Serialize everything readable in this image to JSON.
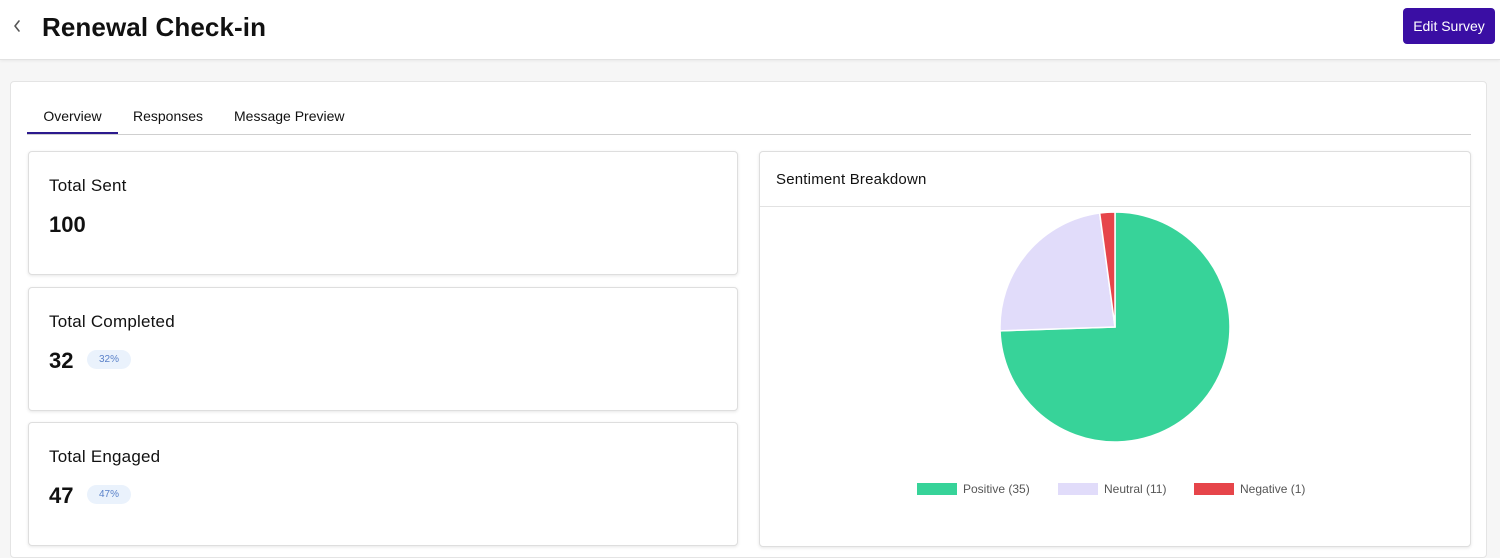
{
  "header": {
    "title": "Renewal Check-in",
    "edit_label": "Edit Survey"
  },
  "tabs": [
    {
      "label": "Overview",
      "active": true
    },
    {
      "label": "Responses",
      "active": false
    },
    {
      "label": "Message Preview",
      "active": false
    }
  ],
  "stats": [
    {
      "label": "Total Sent",
      "value": "100",
      "badge": ""
    },
    {
      "label": "Total Completed",
      "value": "32",
      "badge": "32%"
    },
    {
      "label": "Total Engaged",
      "value": "47",
      "badge": "47%"
    }
  ],
  "colors": {
    "accent": "#3a0ea4",
    "positive": "#37d399",
    "neutral": "#e1dcfa",
    "negative": "#e6454a"
  },
  "chart_data": {
    "type": "pie",
    "title": "Sentiment Breakdown",
    "categories": [
      "Positive",
      "Neutral",
      "Negative"
    ],
    "values": [
      35,
      11,
      1
    ],
    "colors": [
      "#37d399",
      "#e1dcfa",
      "#e6454a"
    ],
    "legend": [
      "Positive (35)",
      "Neutral (11)",
      "Negative (1)"
    ],
    "legend_position": "bottom"
  }
}
